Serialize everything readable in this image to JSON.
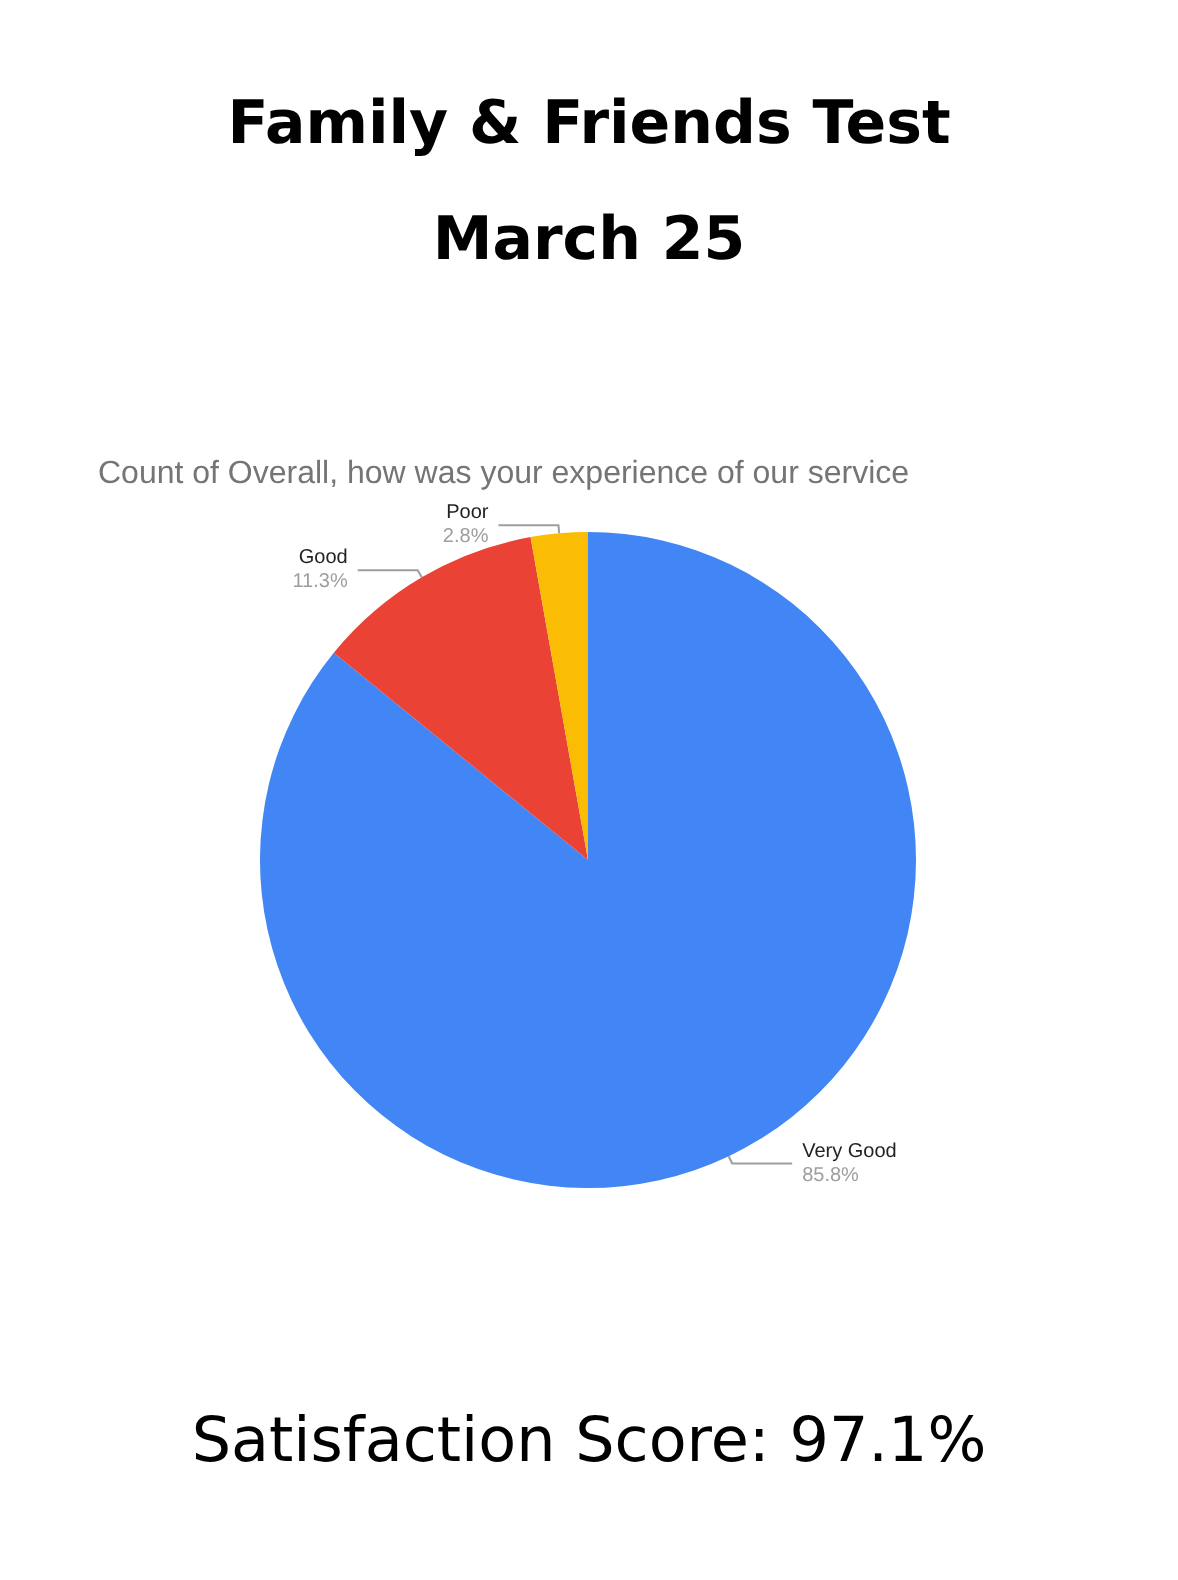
{
  "chart_data": {
    "type": "pie",
    "title": "Family & Friends Test\nMarch 25",
    "subtitle": "Count of Overall, how was your experience of our service",
    "categories": [
      "Very Good",
      "Good",
      "Poor"
    ],
    "values": [
      85.8,
      11.3,
      2.8
    ],
    "value_labels": [
      "85.8%",
      "11.3%",
      "2.8%"
    ],
    "colors": [
      "#4285f4",
      "#ea4335",
      "#fbbc04"
    ],
    "annotations": [
      "Satisfaction Score: 97.1%"
    ]
  }
}
